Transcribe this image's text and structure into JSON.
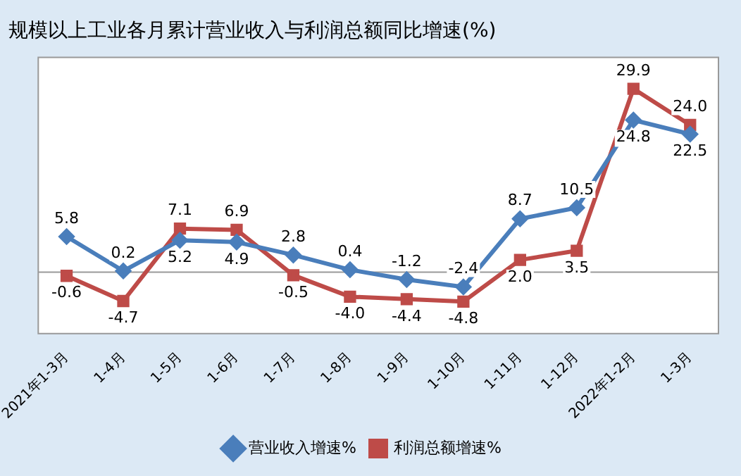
{
  "chart_data": {
    "type": "line",
    "title": "规模以上工业各月累计营业收入与利润总额同比增速(%)",
    "categories": [
      "2021年1-3月",
      "1-4月",
      "1-5月",
      "1-6月",
      "1-7月",
      "1-8月",
      "1-9月",
      "1-10月",
      "1-11月",
      "1-12月",
      "2022年1-2月",
      "1-3月"
    ],
    "series": [
      {
        "name": "营业收入增速%",
        "color": "#4a7ebb",
        "marker": "diamond",
        "values": [
          5.8,
          0.2,
          5.2,
          4.9,
          2.8,
          0.4,
          -1.2,
          -2.4,
          8.7,
          10.5,
          24.8,
          22.5
        ],
        "value_labels": [
          "5.8",
          "0.2",
          "5.2",
          "4.9",
          "2.8",
          "0.4",
          "-1.2",
          "-2.4",
          "8.7",
          "10.5",
          "24.8",
          "22.5"
        ]
      },
      {
        "name": "利润总额增速%",
        "color": "#be4b48",
        "marker": "square",
        "values": [
          -0.6,
          -4.7,
          7.1,
          6.9,
          -0.5,
          -4.0,
          -4.4,
          -4.8,
          2.0,
          3.5,
          29.9,
          24.0
        ],
        "value_labels": [
          "-0.6",
          "-4.7",
          "7.1",
          "6.9",
          "-0.5",
          "-4.0",
          "-4.4",
          "-4.8",
          "2.0",
          "3.5",
          "29.9",
          "24.0"
        ]
      }
    ],
    "legend": "bottom",
    "grid": false,
    "tick_labels": "x",
    "line_style": "solid"
  }
}
